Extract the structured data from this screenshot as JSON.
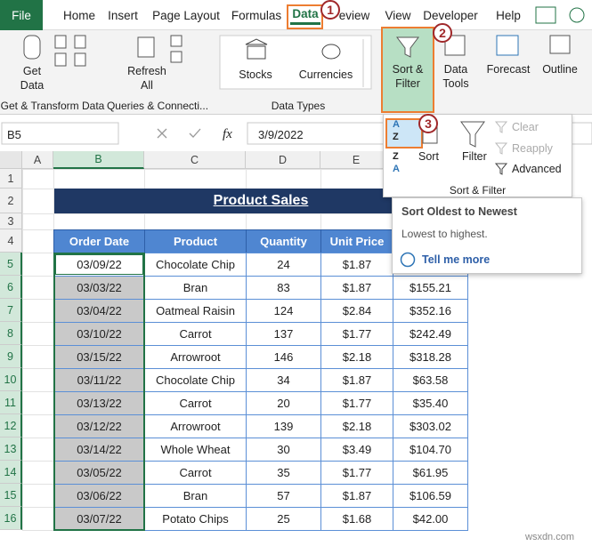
{
  "tabs": [
    "File",
    "Home",
    "Insert",
    "Page Layout",
    "Formulas",
    "Data",
    "eview",
    "View",
    "Developer",
    "Help"
  ],
  "steps": [
    "1",
    "2",
    "3"
  ],
  "ribbon": {
    "get_data": [
      "Get",
      "Data"
    ],
    "get_transform": "Get & Transform Data",
    "refresh_all": [
      "Refresh",
      "All"
    ],
    "queries": "Queries & Connecti...",
    "stocks": "Stocks",
    "currencies": "Currencies",
    "data_types": "Data Types",
    "sort_filter_btn": [
      "Sort &",
      "Filter"
    ],
    "data_tools": [
      "Data",
      "Tools"
    ],
    "forecast": "Forecast",
    "outline": "Outline"
  },
  "sort_panel": {
    "az": [
      "A",
      "Z"
    ],
    "za": [
      "Z",
      "A"
    ],
    "clear": "Clear",
    "reapply": "Reapply",
    "sort": "Sort",
    "filter": "Filter",
    "advanced": "Advanced",
    "group": "Sort & Filter"
  },
  "tooltip": {
    "title": "Sort Oldest to Newest",
    "desc": "Lowest to highest.",
    "link": "Tell me more"
  },
  "formula_bar": {
    "name_box": "B5",
    "fx": "fx",
    "content": "3/9/2022"
  },
  "columns": [
    "A",
    "B",
    "C",
    "D",
    "E"
  ],
  "row_numbers": [
    1,
    2,
    3,
    4,
    5,
    6,
    7,
    8,
    9,
    10,
    11,
    12,
    13,
    14,
    15,
    16
  ],
  "table": {
    "title": "Product Sales",
    "headers": [
      "Order Date",
      "Product",
      "Quantity",
      "Unit Price"
    ],
    "rows": [
      [
        "03/09/22",
        "Chocolate Chip",
        24,
        "$1.87"
      ],
      [
        "03/03/22",
        "Bran",
        83,
        "$1.87",
        "$155.21"
      ],
      [
        "03/04/22",
        "Oatmeal Raisin",
        124,
        "$2.84",
        "$352.16"
      ],
      [
        "03/10/22",
        "Carrot",
        137,
        "$1.77",
        "$242.49"
      ],
      [
        "03/15/22",
        "Arrowroot",
        146,
        "$2.18",
        "$318.28"
      ],
      [
        "03/11/22",
        "Chocolate Chip",
        34,
        "$1.87",
        "$63.58"
      ],
      [
        "03/13/22",
        "Carrot",
        20,
        "$1.77",
        "$35.40"
      ],
      [
        "03/12/22",
        "Arrowroot",
        139,
        "$2.18",
        "$303.02"
      ],
      [
        "03/14/22",
        "Whole Wheat",
        30,
        "$3.49",
        "$104.70"
      ],
      [
        "03/05/22",
        "Carrot",
        35,
        "$1.77",
        "$61.95"
      ],
      [
        "03/06/22",
        "Bran",
        57,
        "$1.87",
        "$106.59"
      ],
      [
        "03/07/22",
        "Potato Chips",
        25,
        "$1.68",
        "$42.00"
      ]
    ]
  },
  "watermark": "wsxdn.com"
}
